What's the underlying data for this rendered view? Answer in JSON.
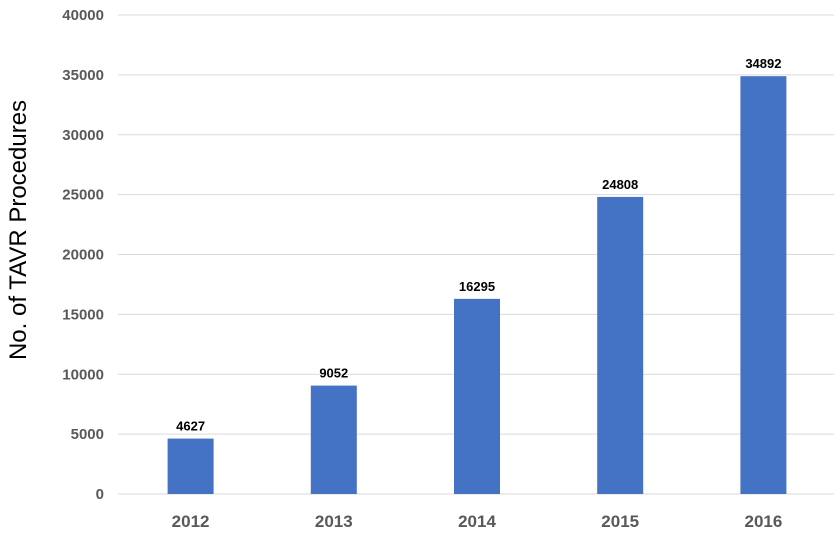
{
  "chart_data": {
    "type": "bar",
    "categories": [
      "2012",
      "2013",
      "2014",
      "2015",
      "2016"
    ],
    "values": [
      4627,
      9052,
      16295,
      24808,
      34892
    ],
    "data_labels": [
      "4627",
      "9052",
      "16295",
      "24808",
      "34892"
    ],
    "title": "",
    "xlabel": "",
    "ylabel": "No. of TAVR Procedures",
    "ylim": [
      0,
      40000
    ],
    "yticks": [
      0,
      5000,
      10000,
      15000,
      20000,
      25000,
      30000,
      35000,
      40000
    ],
    "ytick_labels": [
      "0",
      "5000",
      "10000",
      "15000",
      "20000",
      "25000",
      "30000",
      "35000",
      "40000"
    ],
    "grid": true,
    "legend": "none",
    "colors": {
      "bar": "#4472c4",
      "grid": "#d9d9d9",
      "tick_text": "#595959"
    }
  }
}
